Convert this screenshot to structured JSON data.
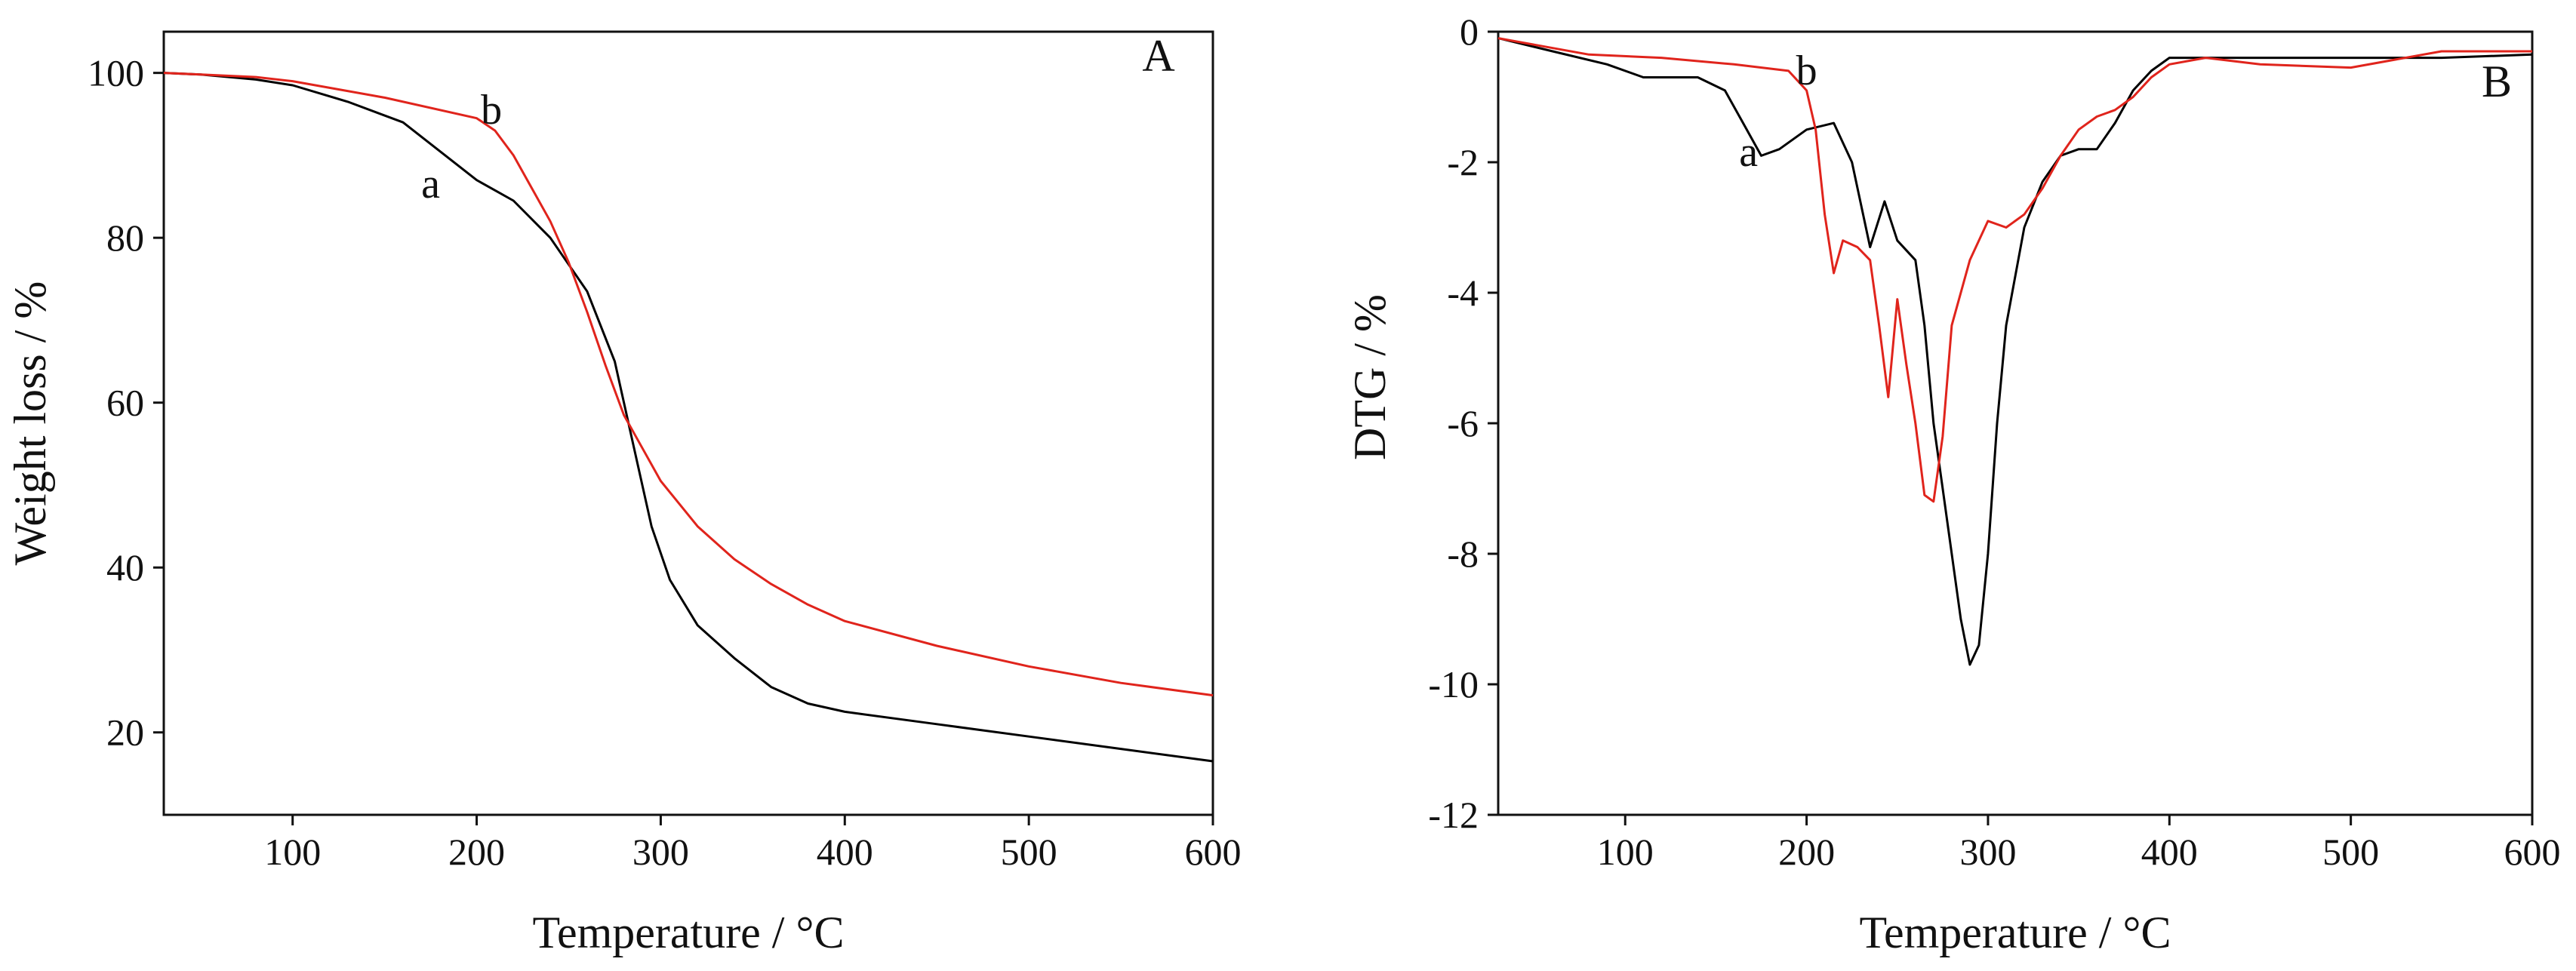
{
  "chart_data": [
    {
      "type": "line",
      "panel_label": "A",
      "xlabel": "Temperature / °C",
      "ylabel": "Weight loss / %",
      "xlim": [
        30,
        600
      ],
      "ylim": [
        10,
        105
      ],
      "xticks": [
        100,
        200,
        300,
        400,
        500,
        600
      ],
      "yticks": [
        20,
        40,
        60,
        80,
        100
      ],
      "grid": false,
      "series": [
        {
          "name": "a",
          "color": "#000000",
          "x": [
            30,
            50,
            80,
            100,
            130,
            160,
            180,
            200,
            220,
            240,
            260,
            275,
            285,
            295,
            305,
            320,
            340,
            360,
            380,
            400,
            450,
            500,
            550,
            600
          ],
          "y": [
            100,
            99.8,
            99.2,
            98.5,
            96.5,
            94.0,
            90.5,
            87.0,
            84.5,
            80.0,
            73.5,
            65.0,
            55.0,
            45.0,
            38.5,
            33.0,
            29.0,
            25.5,
            23.5,
            22.5,
            21.0,
            19.5,
            18.0,
            16.5
          ]
        },
        {
          "name": "b",
          "color": "#e0241c",
          "x": [
            30,
            50,
            80,
            100,
            150,
            200,
            210,
            220,
            230,
            240,
            250,
            260,
            270,
            280,
            290,
            300,
            320,
            340,
            360,
            380,
            400,
            450,
            500,
            550,
            600
          ],
          "y": [
            100,
            99.8,
            99.5,
            99.0,
            97.0,
            94.5,
            93.0,
            90.0,
            86.0,
            82.0,
            77.0,
            71.0,
            64.5,
            58.5,
            54.5,
            50.5,
            45.0,
            41.0,
            38.0,
            35.5,
            33.5,
            30.5,
            28.0,
            26.0,
            24.5
          ]
        }
      ],
      "annotations": [
        {
          "text": "a",
          "x": 175,
          "y": 86.5
        },
        {
          "text": "b",
          "x": 208,
          "y": 95.5
        }
      ]
    },
    {
      "type": "line",
      "panel_label": "B",
      "xlabel": "Temperature / °C",
      "ylabel": "DTG / %",
      "xlim": [
        30,
        600
      ],
      "ylim": [
        -12,
        0
      ],
      "xticks": [
        100,
        200,
        300,
        400,
        500,
        600
      ],
      "yticks": [
        0,
        -2,
        -4,
        -6,
        -8,
        -10,
        -12
      ],
      "grid": false,
      "series": [
        {
          "name": "a",
          "color": "#000000",
          "x": [
            30,
            60,
            90,
            110,
            140,
            155,
            165,
            175,
            185,
            200,
            215,
            225,
            235,
            243,
            250,
            260,
            265,
            270,
            275,
            280,
            285,
            290,
            295,
            300,
            305,
            310,
            320,
            330,
            340,
            350,
            360,
            370,
            380,
            390,
            400,
            420,
            450,
            500,
            550,
            600
          ],
          "y": [
            -0.1,
            -0.3,
            -0.5,
            -0.7,
            -0.7,
            -0.9,
            -1.4,
            -1.9,
            -1.8,
            -1.5,
            -1.4,
            -2.0,
            -3.3,
            -2.6,
            -3.2,
            -3.5,
            -4.5,
            -6.0,
            -7.0,
            -8.0,
            -9.0,
            -9.7,
            -9.4,
            -8.0,
            -6.0,
            -4.5,
            -3.0,
            -2.3,
            -1.9,
            -1.8,
            -1.8,
            -1.4,
            -0.9,
            -0.6,
            -0.4,
            -0.4,
            -0.4,
            -0.4,
            -0.4,
            -0.35
          ]
        },
        {
          "name": "b",
          "color": "#e0241c",
          "x": [
            30,
            50,
            80,
            120,
            160,
            190,
            200,
            205,
            210,
            215,
            220,
            228,
            235,
            240,
            245,
            250,
            255,
            260,
            265,
            270,
            275,
            280,
            290,
            300,
            310,
            320,
            330,
            340,
            350,
            360,
            370,
            380,
            390,
            400,
            420,
            450,
            500,
            550,
            600
          ],
          "y": [
            -0.1,
            -0.2,
            -0.35,
            -0.4,
            -0.5,
            -0.6,
            -0.9,
            -1.5,
            -2.8,
            -3.7,
            -3.2,
            -3.3,
            -3.5,
            -4.5,
            -5.6,
            -4.1,
            -5.1,
            -6.0,
            -7.1,
            -7.2,
            -6.2,
            -4.5,
            -3.5,
            -2.9,
            -3.0,
            -2.8,
            -2.4,
            -1.9,
            -1.5,
            -1.3,
            -1.2,
            -1.0,
            -0.7,
            -0.5,
            -0.4,
            -0.5,
            -0.55,
            -0.3,
            -0.3
          ]
        }
      ],
      "annotations": [
        {
          "text": "a",
          "x": 168,
          "y": -1.85
        },
        {
          "text": "b",
          "x": 200,
          "y": -0.6
        }
      ]
    }
  ]
}
